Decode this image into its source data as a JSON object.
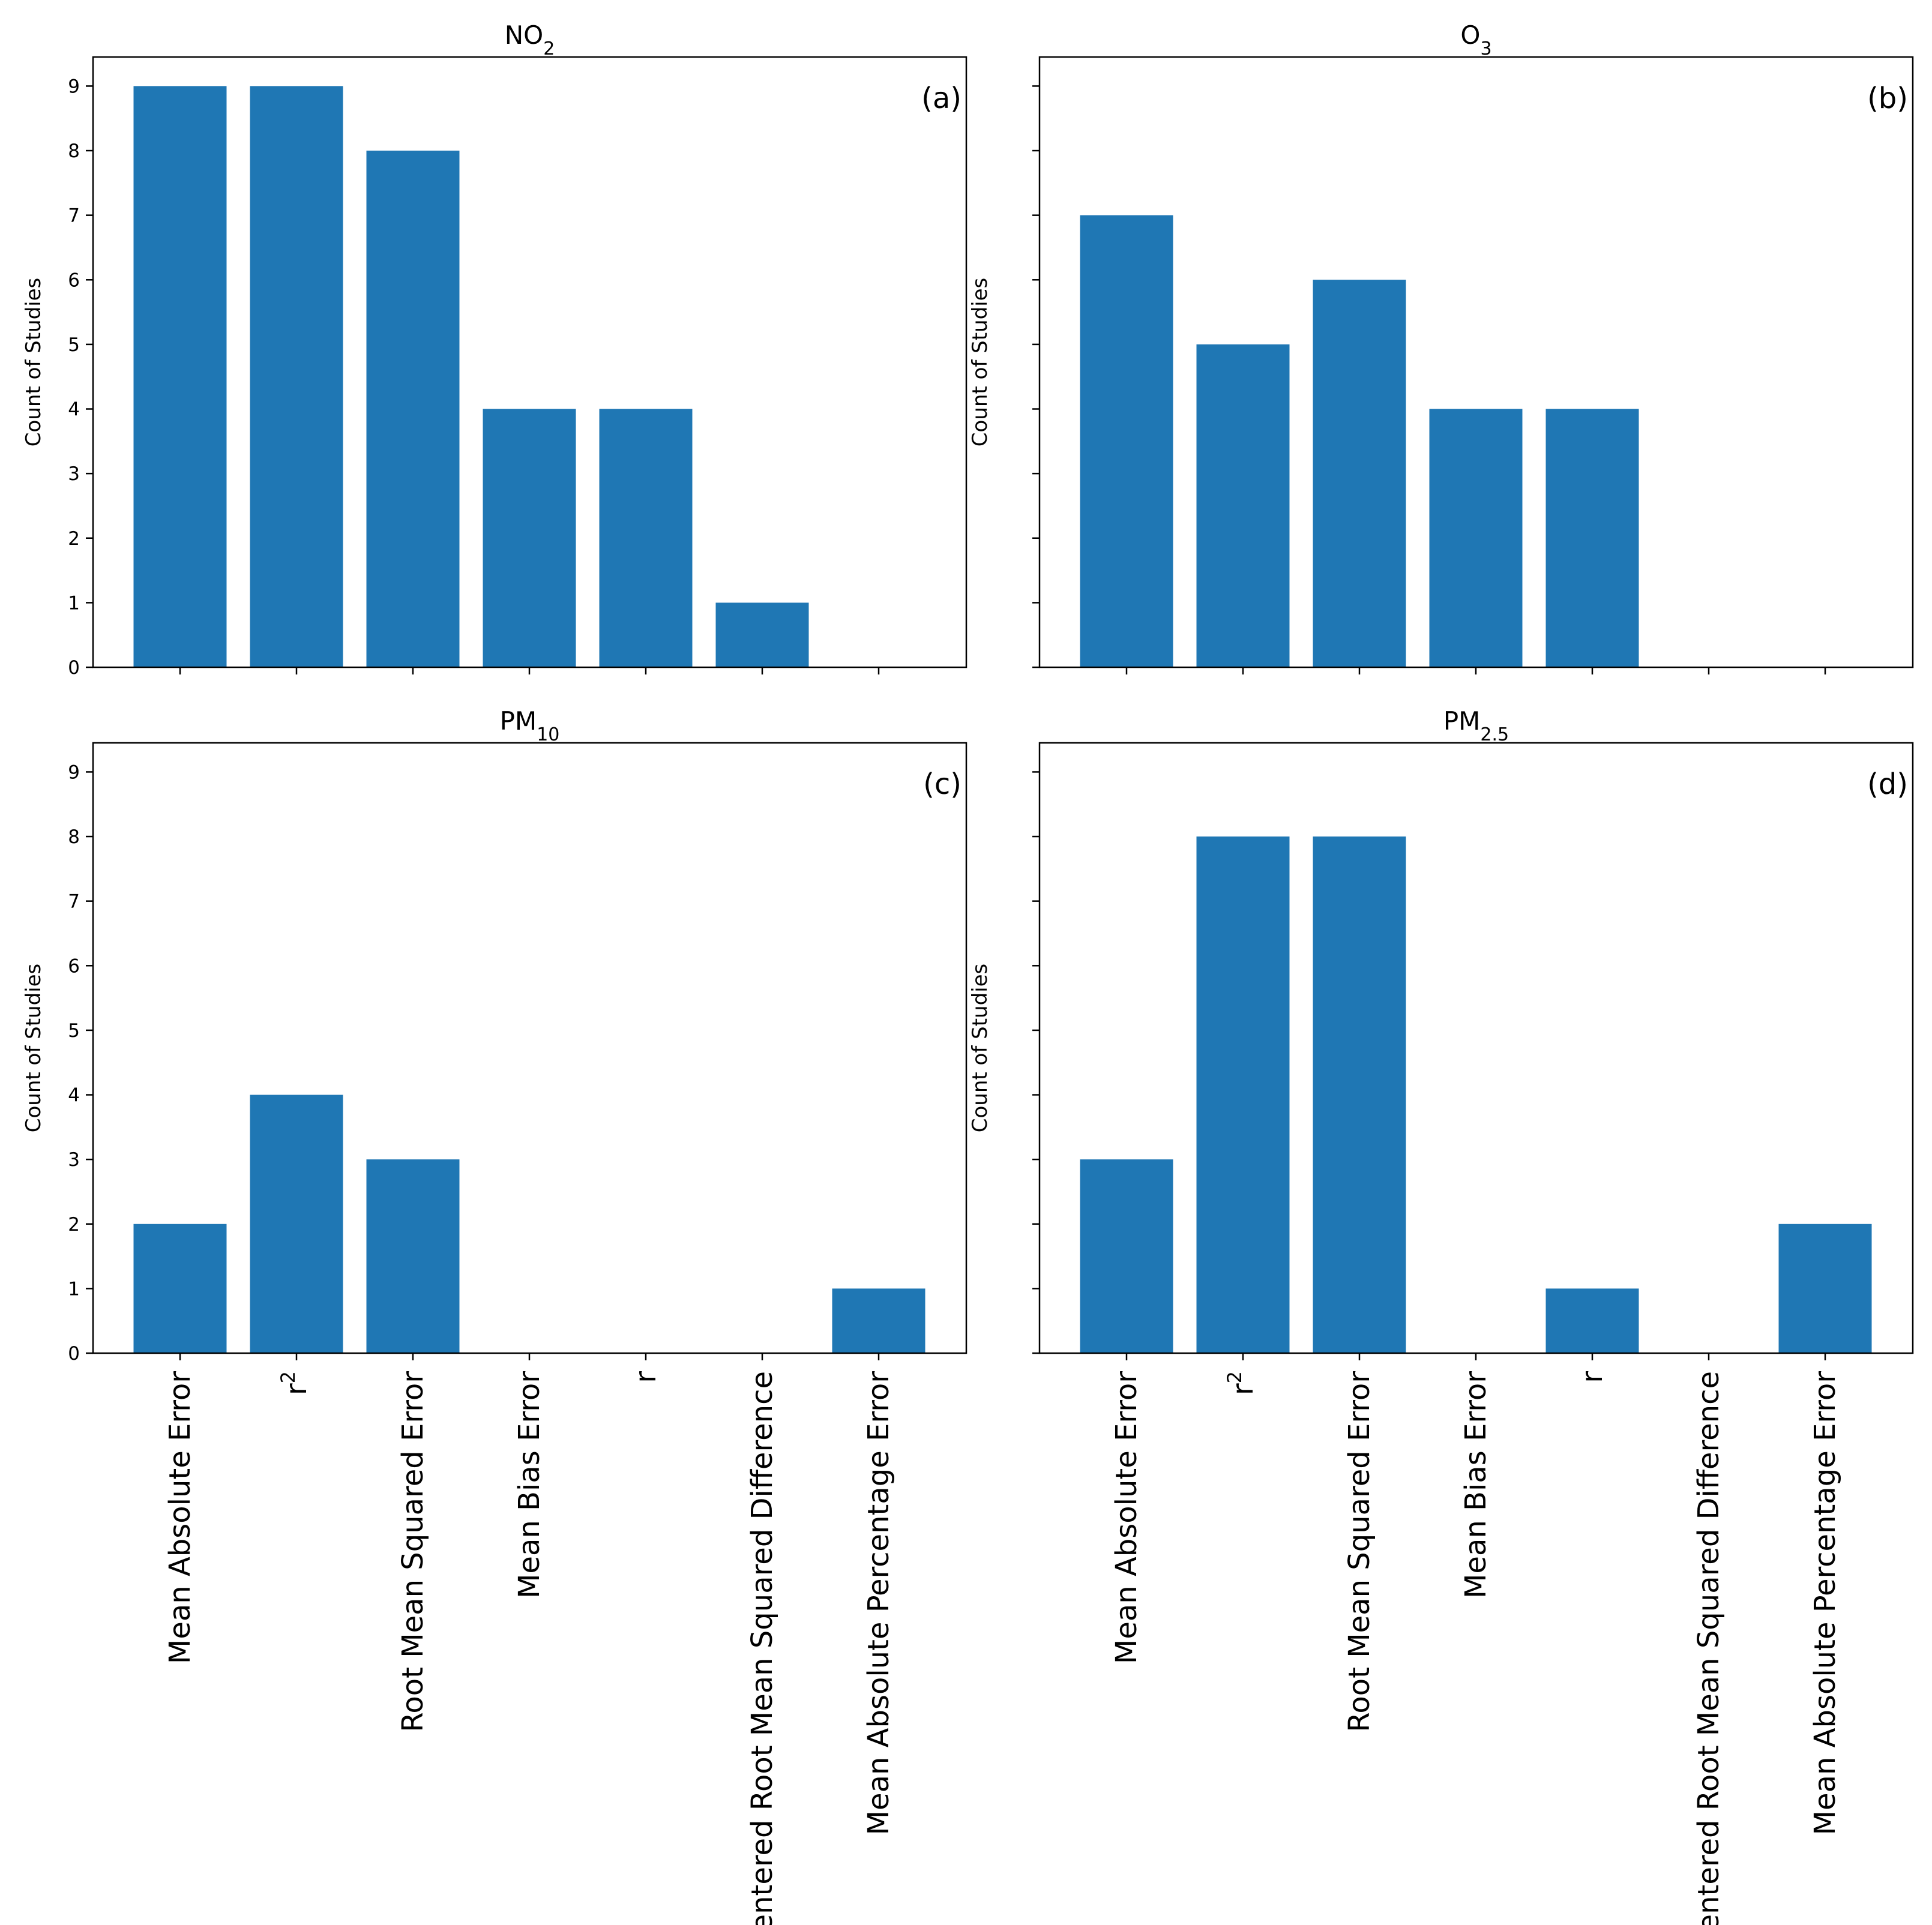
{
  "chart_data": {
    "type": "bar",
    "colors": {
      "bar": "#1f77b4",
      "axis": "#000000",
      "background": "#ffffff"
    },
    "ylabel": "Count of Studies",
    "ylim": [
      0,
      9.45
    ],
    "yticks": [
      0,
      1,
      2,
      3,
      4,
      5,
      6,
      7,
      8,
      9
    ],
    "shared_x": true,
    "shared_y": true,
    "categories": [
      {
        "base": "Mean Absolute Error"
      },
      {
        "base": "r",
        "sup": "2"
      },
      {
        "base": "Root Mean Squared Error"
      },
      {
        "base": "Mean Bias Error"
      },
      {
        "base": "r"
      },
      {
        "base": "Centered Root Mean Squared Difference"
      },
      {
        "base": "Mean Absolute Percentage Error"
      }
    ],
    "panels": [
      {
        "id": "a",
        "title_base": "NO",
        "title_sub": "2",
        "panel_label": "(a)",
        "values": [
          9,
          9,
          8,
          4,
          4,
          1,
          0
        ]
      },
      {
        "id": "b",
        "title_base": "O",
        "title_sub": "3",
        "panel_label": "(b)",
        "values": [
          7,
          5,
          6,
          4,
          4,
          0,
          0
        ]
      },
      {
        "id": "c",
        "title_base": "PM",
        "title_sub": "10",
        "panel_label": "(c)",
        "values": [
          2,
          4,
          3,
          0,
          0,
          0,
          1
        ]
      },
      {
        "id": "d",
        "title_base": "PM",
        "title_sub": "2.5",
        "panel_label": "(d)",
        "values": [
          3,
          8,
          8,
          0,
          1,
          0,
          2
        ]
      }
    ]
  }
}
